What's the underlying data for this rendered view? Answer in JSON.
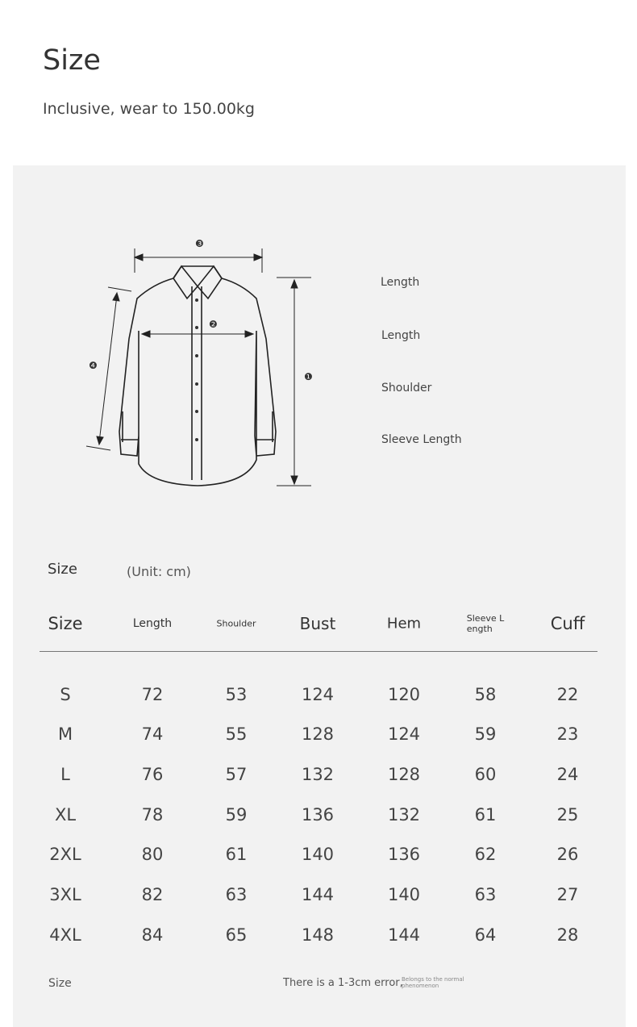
{
  "title": "Size",
  "subtitle": "Inclusive, wear to 150.00kg",
  "diagram": {
    "markers": [
      "❶",
      "❷",
      "❸",
      "❹"
    ],
    "labels": [
      "Length",
      "Length",
      "Shoulder",
      "Sleeve Length"
    ]
  },
  "table": {
    "caption": "Size",
    "unit": "(Unit: cm)",
    "headers": [
      "Size",
      "Length",
      "Shoulder",
      "Bust",
      "Hem",
      "Sleeve L\nength",
      "Cuff"
    ],
    "rows": [
      [
        "S",
        "72",
        "53",
        "124",
        "120",
        "58",
        "22"
      ],
      [
        "M",
        "74",
        "55",
        "128",
        "124",
        "59",
        "23"
      ],
      [
        "L",
        "76",
        "57",
        "132",
        "128",
        "60",
        "24"
      ],
      [
        "XL",
        "78",
        "59",
        "136",
        "132",
        "61",
        "25"
      ],
      [
        "2XL",
        "80",
        "61",
        "140",
        "136",
        "62",
        "26"
      ],
      [
        "3XL",
        "82",
        "63",
        "144",
        "140",
        "63",
        "27"
      ],
      [
        "4XL",
        "84",
        "65",
        "148",
        "144",
        "64",
        "28"
      ]
    ]
  },
  "footer": {
    "left": "Size",
    "note": "There is a 1-3cm error,",
    "small": "Belongs to the normal phenomenon"
  }
}
